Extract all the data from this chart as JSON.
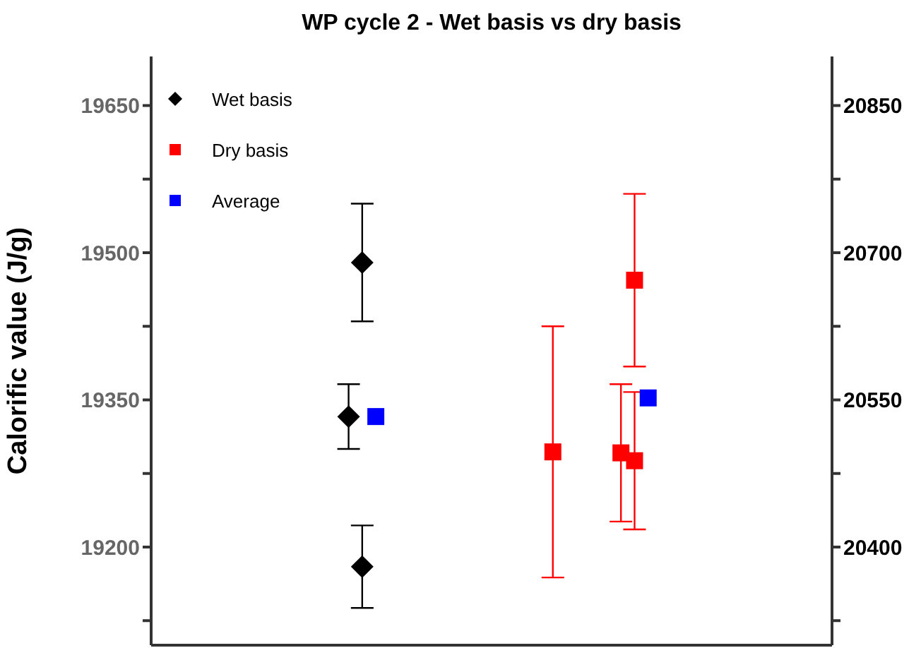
{
  "chart_data": {
    "type": "scatter",
    "title": "WP cycle 2 - Wet basis vs dry basis",
    "ylabel": "Calorific value (J/g)",
    "categories": [
      null,
      null,
      null,
      null,
      null,
      null,
      null,
      null,
      null,
      null,
      null,
      null,
      null,
      null,
      null,
      null,
      null,
      null,
      null,
      null,
      null,
      null,
      null,
      null,
      null,
      null,
      null,
      null,
      null,
      null,
      null,
      null,
      null,
      null,
      null,
      null,
      null,
      null,
      null,
      null,
      null,
      null,
      null,
      null,
      null,
      null,
      null,
      null,
      null,
      null
    ],
    "ylim": [
      19100,
      19700
    ],
    "yticks": [
      {
        "value": 19125,
        "label": null
      },
      19200,
      {
        "value": 19275,
        "label": null
      },
      19350,
      {
        "value": 19425,
        "label": null
      },
      19500,
      {
        "value": 19575,
        "label": null
      },
      19650
    ],
    "y2lim": [
      20300,
      20900
    ],
    "y2ticks": [
      {
        "value": 20325,
        "label": null
      },
      20400,
      {
        "value": 20475,
        "label": null
      },
      20550,
      {
        "value": 20625,
        "label": null
      },
      20700,
      {
        "value": 20775,
        "label": null
      },
      20850
    ],
    "legend": "top left",
    "series": [
      {
        "name": "Wet basis",
        "color": "#000000",
        "marker": "diamond",
        "values": [
          null,
          null,
          null,
          null,
          null,
          null,
          null,
          null,
          null,
          null,
          null,
          null,
          null,
          null,
          19333,
          19490,
          null,
          null,
          null,
          null,
          null,
          null,
          null,
          null,
          null,
          null,
          null,
          null,
          null,
          null,
          null,
          null,
          null,
          null,
          null,
          null,
          null,
          null,
          null,
          null,
          null,
          null,
          null,
          null,
          null,
          null,
          null,
          null,
          null,
          null
        ],
        "errors": [
          null,
          null,
          null,
          null,
          null,
          null,
          null,
          null,
          null,
          null,
          null,
          null,
          null,
          null,
          33,
          60,
          null,
          null,
          null,
          null,
          null,
          null,
          null,
          null,
          null,
          null,
          null,
          null,
          null,
          null,
          null,
          null,
          null,
          null,
          null,
          null,
          null,
          null,
          null,
          null,
          null,
          null,
          null,
          null,
          null,
          null,
          null,
          null,
          null,
          null
        ]
      },
      {
        "color": "#000000",
        "marker": "diamond",
        "values": [
          null,
          null,
          null,
          null,
          null,
          null,
          null,
          null,
          null,
          null,
          null,
          null,
          null,
          null,
          null,
          19180,
          null,
          null,
          null,
          null,
          null,
          null,
          null,
          null,
          null,
          null,
          null,
          null,
          null,
          null,
          null,
          null,
          null,
          null,
          null,
          null,
          null,
          null,
          null,
          null,
          null,
          null,
          null,
          null,
          null,
          null,
          null,
          null,
          null,
          null
        ],
        "errors": [
          null,
          null,
          null,
          null,
          null,
          null,
          null,
          null,
          null,
          null,
          null,
          null,
          null,
          null,
          null,
          42,
          null,
          null,
          null,
          null,
          null,
          null,
          null,
          null,
          null,
          null,
          null,
          null,
          null,
          null,
          null,
          null,
          null,
          null,
          null,
          null,
          null,
          null,
          null,
          null,
          null,
          null,
          null,
          null,
          null,
          null,
          null,
          null,
          null,
          null
        ]
      },
      {
        "name": "Dry basis",
        "color": "#ff0000",
        "marker": "square",
        "axis": "y2",
        "values": [
          null,
          null,
          null,
          null,
          null,
          null,
          null,
          null,
          null,
          null,
          null,
          null,
          null,
          null,
          null,
          null,
          null,
          null,
          null,
          null,
          null,
          null,
          null,
          null,
          null,
          null,
          null,
          null,
          null,
          null,
          null,
          null,
          null,
          null,
          20496,
          20672,
          null,
          null,
          null,
          null,
          null,
          null,
          null,
          null,
          null,
          null,
          null,
          null,
          null,
          null
        ],
        "errors": [
          null,
          null,
          null,
          null,
          null,
          null,
          null,
          null,
          null,
          null,
          null,
          null,
          null,
          null,
          null,
          null,
          null,
          null,
          null,
          null,
          null,
          null,
          null,
          null,
          null,
          null,
          null,
          null,
          null,
          null,
          null,
          null,
          null,
          null,
          70,
          88,
          null,
          null,
          null,
          null,
          null,
          null,
          null,
          null,
          null,
          null,
          null,
          null,
          null,
          null
        ]
      },
      {
        "color": "#ff0000",
        "marker": "square",
        "axis": "y2",
        "values": [
          null,
          null,
          null,
          null,
          null,
          null,
          null,
          null,
          null,
          null,
          null,
          null,
          null,
          null,
          null,
          null,
          null,
          null,
          null,
          null,
          null,
          null,
          null,
          null,
          null,
          null,
          null,
          null,
          null,
          null,
          null,
          null,
          null,
          null,
          null,
          20488,
          null,
          null,
          null,
          null,
          null,
          null,
          null,
          null,
          null,
          null,
          null,
          null,
          null,
          null
        ],
        "errors": [
          null,
          null,
          null,
          null,
          null,
          null,
          null,
          null,
          null,
          null,
          null,
          null,
          null,
          null,
          null,
          null,
          null,
          null,
          null,
          null,
          null,
          null,
          null,
          null,
          null,
          null,
          null,
          null,
          null,
          null,
          null,
          null,
          null,
          null,
          null,
          70,
          null,
          null,
          null,
          null,
          null,
          null,
          null,
          null,
          null,
          null,
          null,
          null,
          null,
          null
        ]
      },
      {
        "name": "Average",
        "color": "#0000ff",
        "marker": "square",
        "values": [
          null,
          null,
          null,
          null,
          null,
          null,
          null,
          null,
          null,
          null,
          null,
          null,
          null,
          null,
          null,
          null,
          19333,
          null,
          null,
          null,
          null,
          null,
          null,
          null,
          null,
          null,
          null,
          null,
          null,
          null,
          null,
          null,
          null,
          null,
          null,
          null,
          null,
          null,
          null,
          null,
          null,
          null,
          null,
          null,
          null,
          null,
          null,
          null,
          null,
          null
        ]
      },
      {
        "color": "#ff0000",
        "marker": "square",
        "axis": "y2",
        "values": [
          null,
          null,
          null,
          null,
          null,
          null,
          null,
          null,
          null,
          null,
          null,
          null,
          null,
          null,
          null,
          null,
          null,
          null,
          null,
          null,
          null,
          null,
          null,
          null,
          null,
          null,
          null,
          null,
          null,
          20497,
          null,
          null,
          null,
          null,
          null,
          null,
          null,
          null,
          null,
          null,
          null,
          null,
          null,
          null,
          null,
          null,
          null,
          null,
          null,
          null
        ],
        "errors": [
          null,
          null,
          null,
          null,
          null,
          null,
          null,
          null,
          null,
          null,
          null,
          null,
          null,
          null,
          null,
          null,
          null,
          null,
          null,
          null,
          null,
          null,
          null,
          null,
          null,
          null,
          null,
          null,
          null,
          128,
          null,
          null,
          null,
          null,
          null,
          null,
          null,
          null,
          null,
          null,
          null,
          null,
          null,
          null,
          null,
          null,
          null,
          null,
          null,
          null
        ]
      },
      {
        "color": "#0000ff",
        "marker": "square",
        "axis": "y2",
        "values": [
          null,
          null,
          null,
          null,
          null,
          null,
          null,
          null,
          null,
          null,
          null,
          null,
          null,
          null,
          null,
          null,
          null,
          null,
          null,
          null,
          null,
          null,
          null,
          null,
          null,
          null,
          null,
          null,
          null,
          null,
          null,
          null,
          null,
          null,
          null,
          null,
          20552,
          null,
          null,
          null,
          null,
          null,
          null,
          null,
          null,
          null,
          null,
          null,
          null,
          null
        ]
      }
    ]
  }
}
